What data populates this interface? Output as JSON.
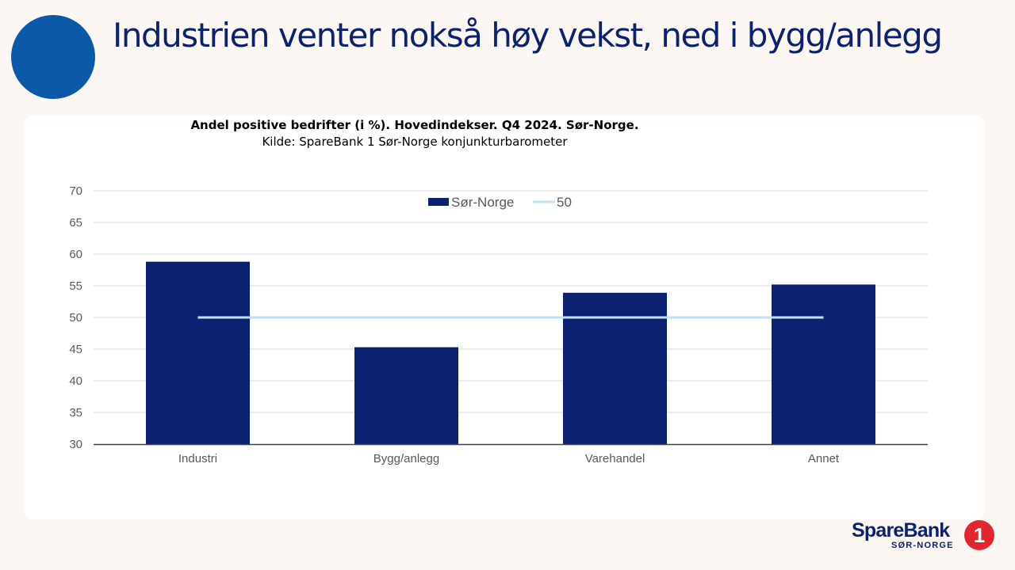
{
  "slide": {
    "title": "Industrien venter nokså høy vekst, ned i bygg/anlegg"
  },
  "logo": {
    "brand": "SpareBank",
    "sub": "SØR-NORGE",
    "badge": "1"
  },
  "colors": {
    "bar": "#0c2270",
    "reference_line": "#bfe0f5",
    "gridline": "#d9d9d9",
    "axis_text": "#595959"
  },
  "chart_data": {
    "type": "bar",
    "title": "Andel positive bedrifter (i %). Hovedindekser. Q4 2024. Sør-Norge.",
    "subtitle": "Kilde: SpareBank 1 Sør-Norge konjunkturbarometer",
    "categories": [
      "Industri",
      "Bygg/anlegg",
      "Varehandel",
      "Annet"
    ],
    "series": [
      {
        "name": "Sør-Norge",
        "type": "bar",
        "values": [
          58.8,
          45.3,
          53.9,
          55.2
        ]
      },
      {
        "name": "50",
        "type": "line",
        "values": [
          50,
          50,
          50,
          50
        ]
      }
    ],
    "ylim": [
      30,
      70
    ],
    "yticks": [
      30,
      35,
      40,
      45,
      50,
      55,
      60,
      65,
      70
    ],
    "grid": true,
    "legend": "top-center"
  }
}
